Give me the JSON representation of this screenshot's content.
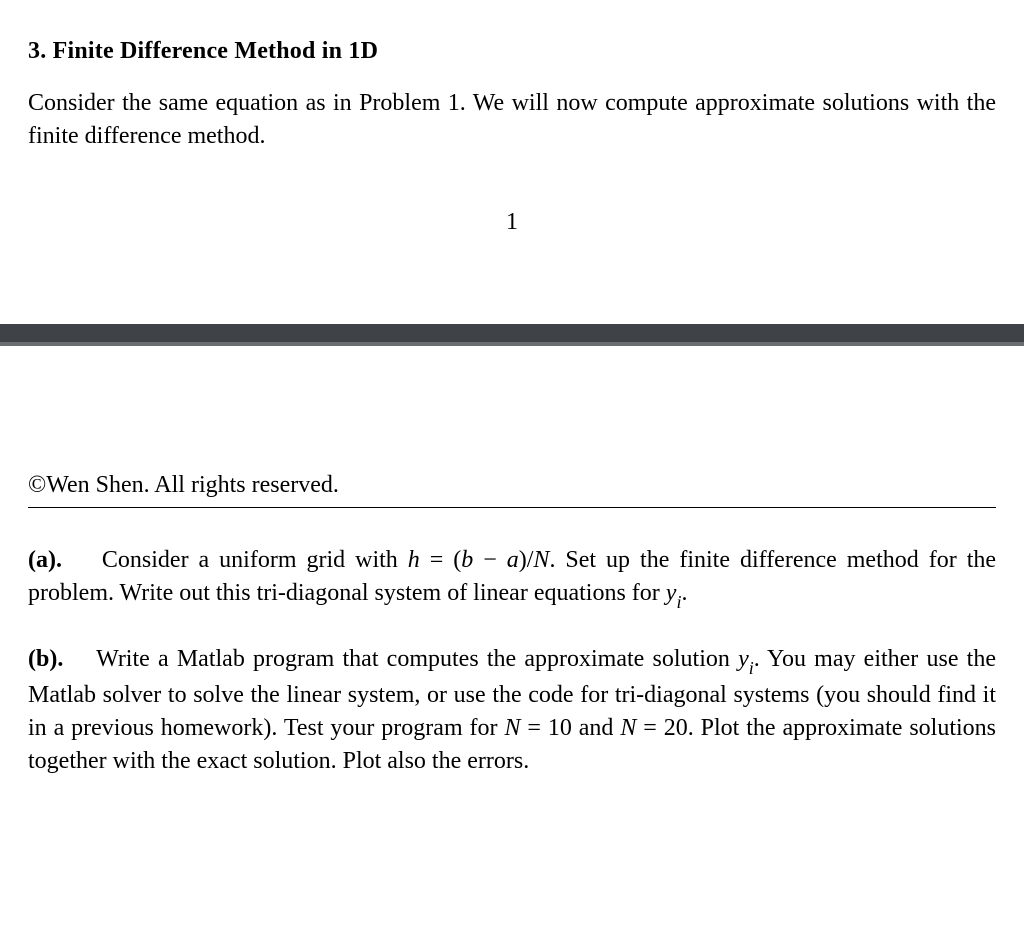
{
  "problem": {
    "number_label": "3.",
    "title": "Finite Difference Method in 1D",
    "intro": "Consider the same equation as in Problem 1. We will now compute approximate solutions with the finite difference method."
  },
  "page_number": "1",
  "copyright": "©Wen Shen. All rights reserved.",
  "part_a": {
    "label": "(a).",
    "t1": "Consider a uniform grid with ",
    "eq_h": "h",
    "eq_eq": " = (",
    "eq_b": "b",
    "eq_minus": " − ",
    "eq_a": "a",
    "eq_close": ")/",
    "eq_N": "N",
    "t2": ". Set up the finite difference method for the problem. Write out this tri-diagonal system of linear equations for ",
    "eq_y": "y",
    "eq_i": "i",
    "t3": "."
  },
  "part_b": {
    "label": "(b).",
    "t1": "Write a Matlab program that computes the approximate solution ",
    "eq_y": "y",
    "eq_i": "i",
    "t2": ". You may either use the Matlab solver to solve the linear system, or use the code for tri-diagonal systems (you should find it in a previous homework). Test your program for ",
    "eq_N1": "N",
    "eq_eq1": " = 10 and ",
    "eq_N2": "N",
    "eq_eq2": " = 20. Plot the approximate solutions together with the exact solution. Plot also the errors."
  }
}
